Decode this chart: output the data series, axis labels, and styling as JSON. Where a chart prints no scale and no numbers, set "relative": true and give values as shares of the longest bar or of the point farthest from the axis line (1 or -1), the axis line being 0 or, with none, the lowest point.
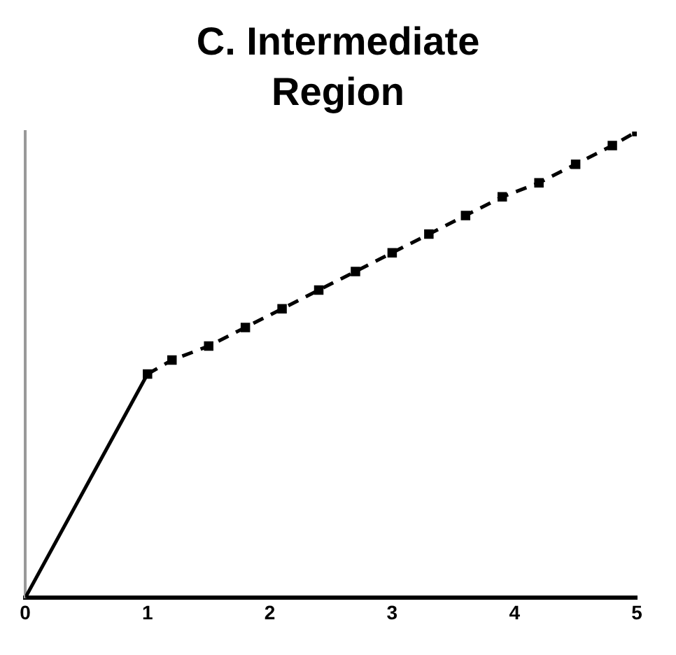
{
  "chart_data": {
    "type": "line",
    "title": "C. Intermediate Region",
    "relative": true,
    "xlim": [
      0,
      5
    ],
    "xticks": [
      0,
      1,
      2,
      3,
      4,
      5
    ],
    "grid": false,
    "legend": false,
    "series": [
      {
        "type": "line",
        "color": "#000000",
        "line_style": "solid",
        "x": [
          0,
          1
        ],
        "values": [
          0,
          0.48
        ]
      },
      {
        "type": "line",
        "color": "#000000",
        "line_style": "dashed",
        "marker": "square",
        "x": [
          1,
          1.2,
          1.5,
          1.8,
          2.1,
          2.4,
          2.7,
          3.0,
          3.3,
          3.6,
          3.9,
          4.2,
          4.5,
          4.8,
          5
        ],
        "values": [
          0.48,
          0.51,
          0.54,
          0.58,
          0.62,
          0.66,
          0.7,
          0.74,
          0.78,
          0.82,
          0.86,
          0.89,
          0.93,
          0.97,
          1
        ]
      }
    ]
  }
}
